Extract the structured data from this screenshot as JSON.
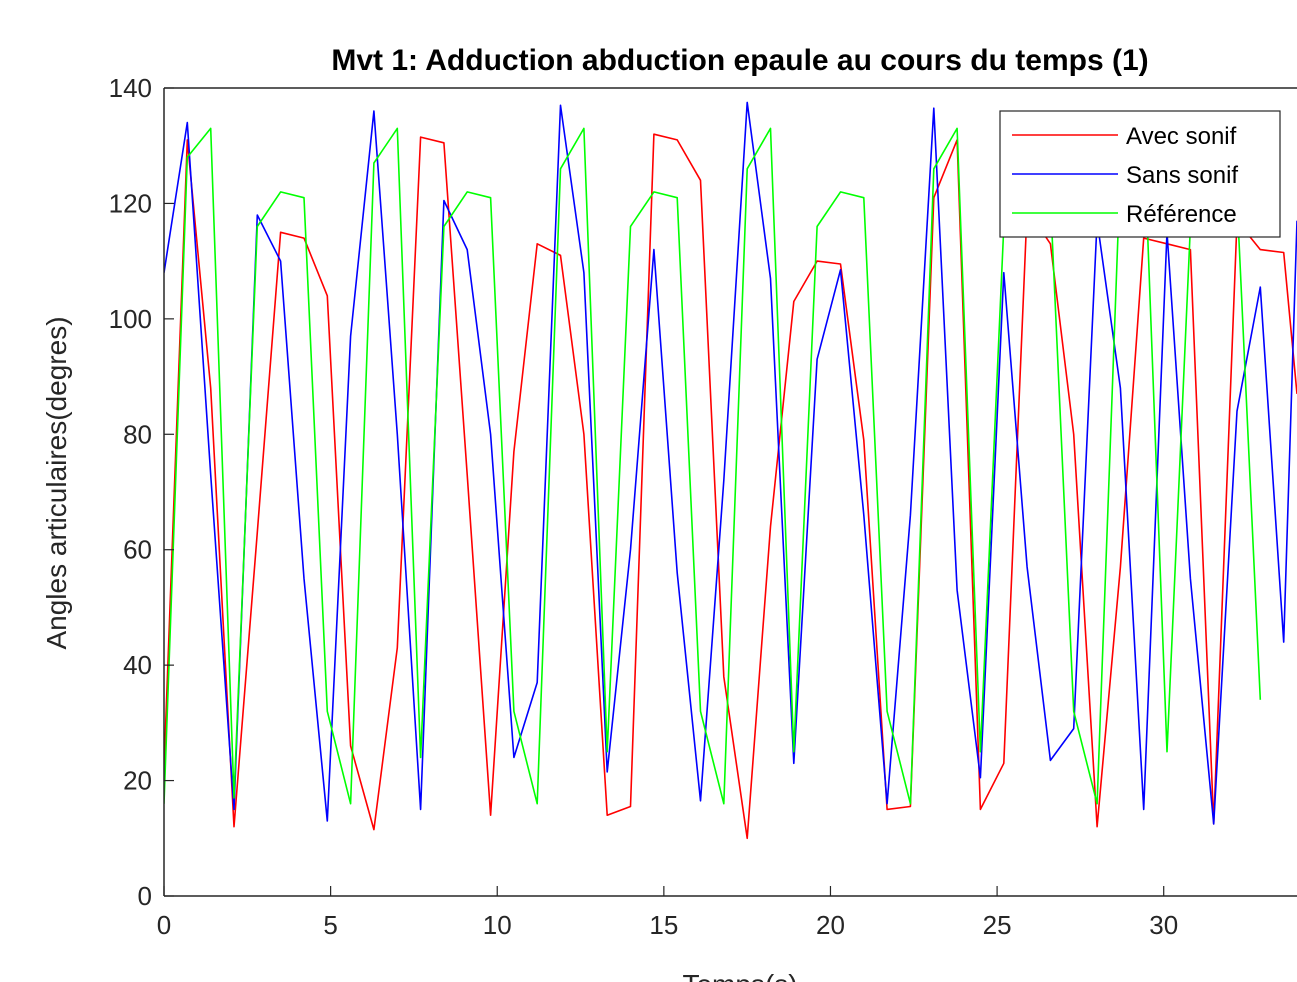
{
  "chart_data": {
    "type": "line",
    "title": "Mvt 1: Adduction abduction epaule au cours du temps (1)",
    "xlabel": "Temps(s)",
    "ylabel": "Angles articulaires(degres)",
    "xlim": [
      0,
      34
    ],
    "ylim": [
      0,
      140
    ],
    "xticks": [
      0,
      5,
      10,
      15,
      20,
      25,
      30
    ],
    "yticks": [
      0,
      20,
      40,
      60,
      80,
      100,
      120,
      140
    ],
    "grid": false,
    "legend_position": "top-right",
    "series": [
      {
        "name": "Avec sonif",
        "color": "#ff0000",
        "x": [
          0,
          0.7,
          1.4,
          2.1,
          2.8,
          3.5,
          4.2,
          4.9,
          5.6,
          6.3,
          7.0,
          7.7,
          8.4,
          9.1,
          9.8,
          10.5,
          11.2,
          11.9,
          12.6,
          13.3,
          14.0,
          14.7,
          15.4,
          16.1,
          16.8,
          17.5,
          18.2,
          18.9,
          19.6,
          20.3,
          21.0,
          21.7,
          22.4,
          23.1,
          23.8,
          24.5,
          25.2,
          25.9,
          26.6,
          27.3,
          28.0,
          28.7,
          29.4,
          30.1,
          30.8,
          31.5,
          32.2,
          32.9,
          33.6,
          34.0
        ],
        "y": [
          22,
          131,
          88,
          12,
          63,
          115,
          114,
          104,
          26,
          11.5,
          43,
          131.5,
          130.5,
          73,
          14,
          77,
          113,
          111,
          80,
          14,
          15.5,
          132,
          131,
          124,
          38,
          10,
          64,
          103,
          110,
          109.5,
          79,
          15,
          15.5,
          121,
          131,
          15,
          23,
          119,
          113,
          80,
          12,
          57,
          114,
          113,
          112,
          12.5,
          117,
          112,
          111.5,
          87
        ]
      },
      {
        "name": "Sans sonif",
        "color": "#0000ff",
        "x": [
          0,
          0.7,
          1.4,
          2.1,
          2.8,
          3.5,
          4.2,
          4.9,
          5.6,
          6.3,
          7.0,
          7.7,
          8.4,
          9.1,
          9.8,
          10.5,
          11.2,
          11.9,
          12.6,
          13.3,
          14.0,
          14.7,
          15.4,
          16.1,
          16.8,
          17.5,
          18.2,
          18.9,
          19.6,
          20.3,
          21.0,
          21.7,
          22.4,
          23.1,
          23.8,
          24.5,
          25.2,
          25.9,
          26.6,
          27.3,
          28.0,
          28.7,
          29.4,
          30.1,
          30.8,
          31.5,
          32.2,
          32.9,
          33.6,
          34.0
        ],
        "y": [
          108,
          134,
          73,
          15,
          118,
          110,
          55,
          13,
          97,
          136,
          80,
          15,
          120.5,
          112,
          80,
          24,
          37,
          137,
          108,
          21.5,
          60,
          112,
          56,
          16.5,
          72,
          137.5,
          107,
          23,
          93,
          108.5,
          66,
          16,
          66,
          136.5,
          53,
          20.5,
          108,
          57,
          23.5,
          29,
          117,
          88,
          15,
          115,
          55,
          12.5,
          84,
          105.5,
          44,
          117
        ]
      },
      {
        "name": "Référence",
        "color": "#00ff00",
        "x": [
          0,
          0.7,
          1.4,
          2.1,
          2.8,
          3.5,
          4.2,
          4.9,
          5.6,
          6.3,
          7.0,
          7.7,
          8.4,
          9.1,
          9.8,
          10.5,
          11.2,
          11.9,
          12.6,
          13.3,
          14.0,
          14.7,
          15.4,
          16.1,
          16.8,
          17.5,
          18.2,
          18.9,
          19.6,
          20.3,
          21.0,
          21.7,
          22.4,
          23.1,
          23.8,
          24.5,
          25.2,
          25.9,
          26.6,
          27.3,
          28.0,
          28.7,
          29.4,
          30.1,
          30.8,
          31.5,
          32.2,
          32.9
        ],
        "y": [
          16,
          128,
          133,
          17,
          116,
          122,
          121,
          32,
          16,
          127,
          133,
          24,
          116,
          122,
          121,
          32,
          16,
          126,
          133,
          25,
          116,
          122,
          121,
          32,
          16,
          126,
          133,
          25,
          116,
          122,
          121,
          32,
          16,
          126,
          133,
          25,
          116,
          122,
          121,
          32,
          16,
          126,
          133,
          25,
          116,
          122,
          121,
          34
        ]
      }
    ]
  }
}
